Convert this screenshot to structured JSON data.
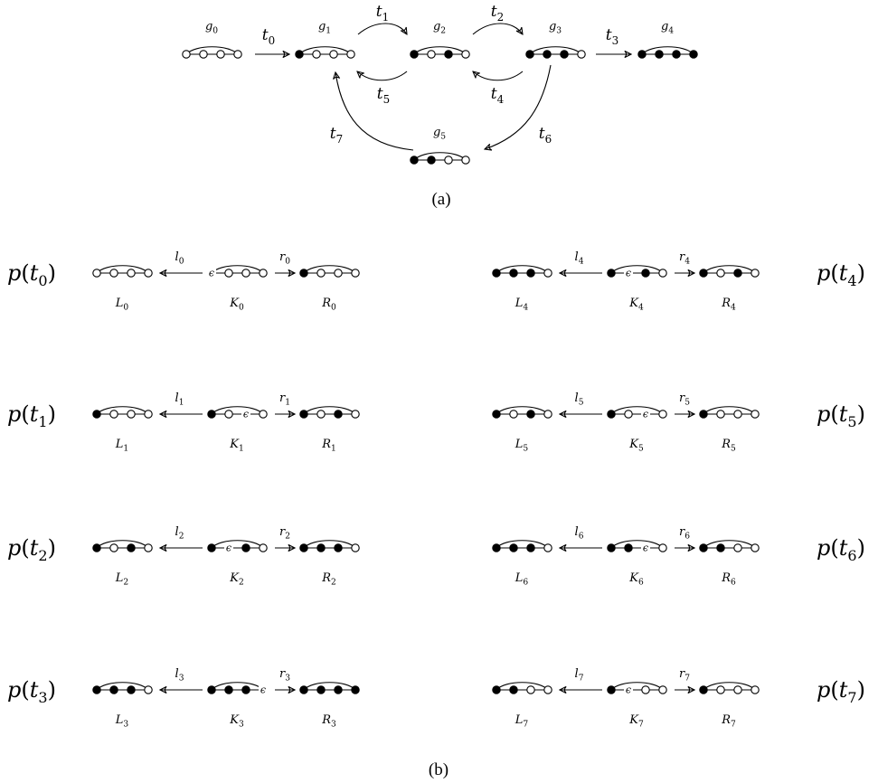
{
  "caption_a": "(a)",
  "caption_b": "(b)",
  "states": [
    {
      "name": "g",
      "sub": "0",
      "pattern": "oooo"
    },
    {
      "name": "g",
      "sub": "1",
      "pattern": "xooo"
    },
    {
      "name": "g",
      "sub": "2",
      "pattern": "xoxo"
    },
    {
      "name": "g",
      "sub": "3",
      "pattern": "xxxo"
    },
    {
      "name": "g",
      "sub": "4",
      "pattern": "xxxx"
    },
    {
      "name": "g",
      "sub": "5",
      "pattern": "xxoo"
    }
  ],
  "transitions": [
    {
      "name": "t",
      "sub": "0",
      "from": 0,
      "to": 1
    },
    {
      "name": "t",
      "sub": "1",
      "from": 1,
      "to": 2
    },
    {
      "name": "t",
      "sub": "2",
      "from": 2,
      "to": 3
    },
    {
      "name": "t",
      "sub": "3",
      "from": 3,
      "to": 4
    },
    {
      "name": "t",
      "sub": "4",
      "from": 3,
      "to": 2
    },
    {
      "name": "t",
      "sub": "5",
      "from": 2,
      "to": 1
    },
    {
      "name": "t",
      "sub": "6",
      "from": 3,
      "to": 5
    },
    {
      "name": "t",
      "sub": "7",
      "from": 5,
      "to": 1
    }
  ],
  "rules": [
    {
      "index": "0",
      "L": "oooo",
      "K": "eooo",
      "R": "xooo"
    },
    {
      "index": "1",
      "L": "xooo",
      "K": "xoeo",
      "R": "xoxo"
    },
    {
      "index": "2",
      "L": "xoxo",
      "K": "xexo",
      "R": "xxxo"
    },
    {
      "index": "3",
      "L": "xxxo",
      "K": "xxxe",
      "R": "xxxx"
    },
    {
      "index": "4",
      "L": "xxxo",
      "K": "xexo",
      "R": "xoxo"
    },
    {
      "index": "5",
      "L": "xoxo",
      "K": "xoeo",
      "R": "xooo"
    },
    {
      "index": "6",
      "L": "xxxo",
      "K": "xxeo",
      "R": "xxoo"
    },
    {
      "index": "7",
      "L": "xxoo",
      "K": "xeoo",
      "R": "xooo"
    }
  ],
  "labels": {
    "rule_prefix": "p(",
    "rule_suffix": ")",
    "left_morphism": "l",
    "right_morphism": "r",
    "left_graph": "L",
    "interface_graph": "K",
    "right_graph": "R",
    "rule_var": "t",
    "epsilon": "ϵ"
  }
}
